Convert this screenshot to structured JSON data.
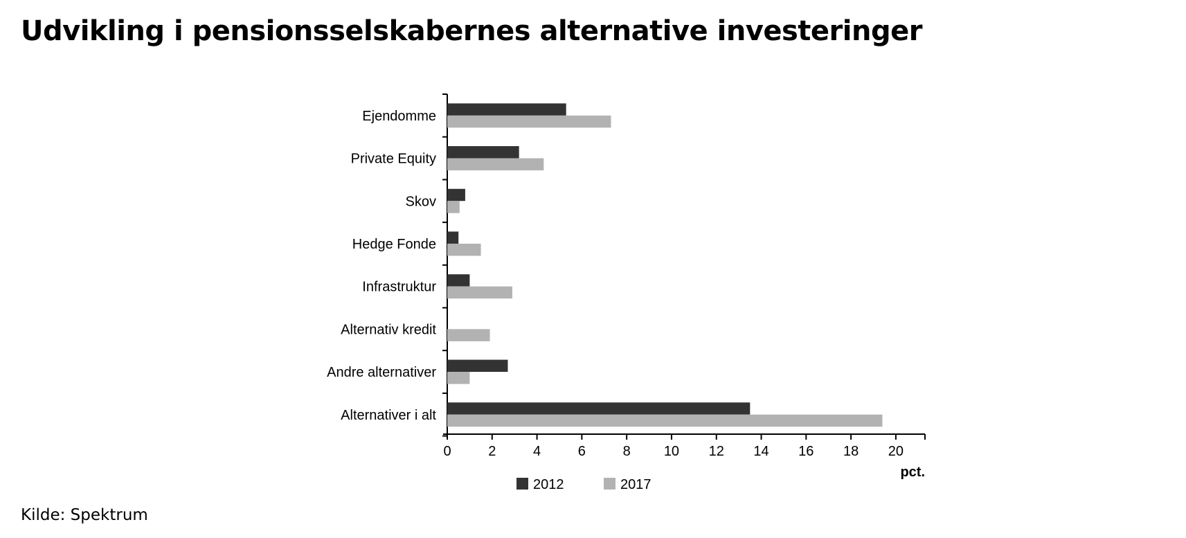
{
  "title": "Udvikling i pensionsselskabernes alternative investeringer",
  "source": "Kilde: Spektrum",
  "chart_data": {
    "type": "bar",
    "orientation": "horizontal",
    "categories": [
      "Ejendomme",
      "Private Equity",
      "Skov",
      "Hedge Fonde",
      "Infrastruktur",
      "Alternativ kredit",
      "Andre alternativer",
      "Alternativer i alt"
    ],
    "series": [
      {
        "name": "2012",
        "color": "#333333",
        "values": [
          5.3,
          3.2,
          0.8,
          0.5,
          1.0,
          0.0,
          2.7,
          13.5
        ]
      },
      {
        "name": "2017",
        "color": "#b2b2b2",
        "values": [
          7.3,
          4.3,
          0.55,
          1.5,
          2.9,
          1.9,
          1.0,
          19.4
        ]
      }
    ],
    "x_ticks": [
      "0",
      "2",
      "4",
      "6",
      "8",
      "10",
      "12",
      "14",
      "16",
      "18",
      "20"
    ],
    "xlim": [
      0,
      21.3
    ],
    "xlabel": "pct.",
    "legend_position": "bottom",
    "grid": false
  }
}
